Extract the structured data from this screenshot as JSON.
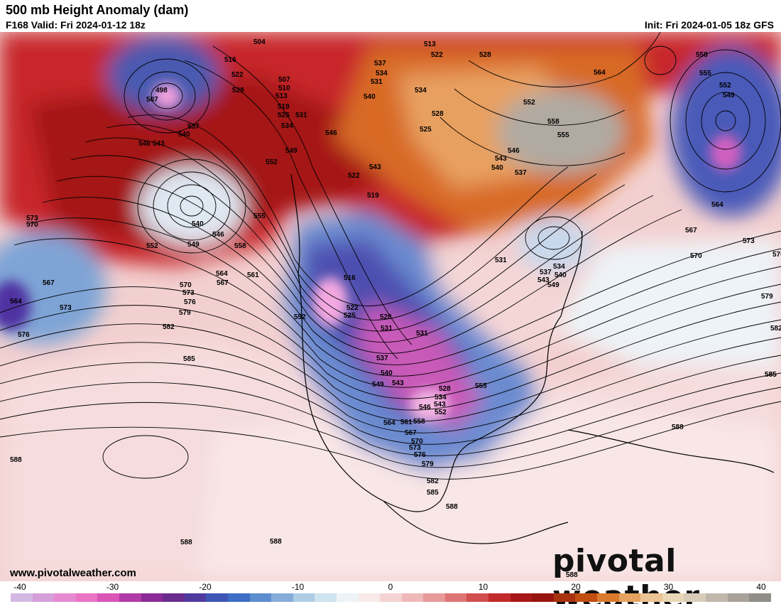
{
  "header": {
    "title": "500 mb Height Anomaly (dam)",
    "valid": "F168 Valid: Fri 2024-01-12 18z",
    "init": "Init: Fri 2024-01-05 18z GFS"
  },
  "footer": {
    "website": "www.pivotalweather.com",
    "logo_text": "pivotal weather"
  },
  "colorbar": {
    "tick_labels": [
      "-40",
      "-30",
      "-20",
      "-10",
      "0",
      "10",
      "20",
      "30",
      "40"
    ],
    "colors": [
      "#d4b8e4",
      "#d59fd9",
      "#e58ad0",
      "#ea73c4",
      "#d955b6",
      "#b23aa6",
      "#8b2a96",
      "#6a2a8e",
      "#4f3aa0",
      "#3f55b6",
      "#3d6dc4",
      "#5c8dcf",
      "#86add9",
      "#aecde6",
      "#d0e3f0",
      "#eef3f7",
      "#f9eaea",
      "#f5d3d3",
      "#efb9b9",
      "#e89a9a",
      "#de7474",
      "#d24f4f",
      "#c22a2a",
      "#a81717",
      "#97150f",
      "#a8320d",
      "#c24e12",
      "#d97a2c",
      "#e6a25e",
      "#ecc493",
      "#e9d8b6",
      "#d8cdb8",
      "#c0b8ac",
      "#a8a29b",
      "#918d88"
    ]
  },
  "contour_labels": [
    "504",
    "516",
    "522",
    "528",
    "507",
    "510",
    "513",
    "519",
    "525",
    "531",
    "534",
    "498",
    "507",
    "513",
    "522",
    "528",
    "537",
    "534",
    "531",
    "534",
    "540",
    "525",
    "528",
    "552",
    "558",
    "555",
    "546",
    "543",
    "540",
    "537",
    "564",
    "558",
    "555",
    "552",
    "549",
    "564",
    "567",
    "570",
    "573",
    "576",
    "579",
    "582",
    "585",
    "537",
    "540",
    "546",
    "543",
    "549",
    "552",
    "546",
    "543",
    "522",
    "519",
    "540",
    "546",
    "549",
    "552",
    "555",
    "558",
    "561",
    "564",
    "567",
    "570",
    "573",
    "576",
    "579",
    "582",
    "585",
    "573",
    "570",
    "567",
    "564",
    "573",
    "576",
    "516",
    "522",
    "525",
    "528",
    "531",
    "531",
    "537",
    "540",
    "543",
    "549",
    "552",
    "528",
    "534",
    "543",
    "546",
    "552",
    "555",
    "558",
    "561",
    "564",
    "567",
    "570",
    "573",
    "576",
    "579",
    "582",
    "585",
    "588",
    "531",
    "534",
    "537",
    "540",
    "543",
    "549",
    "585",
    "588",
    "588",
    "588",
    "588",
    "588"
  ]
}
